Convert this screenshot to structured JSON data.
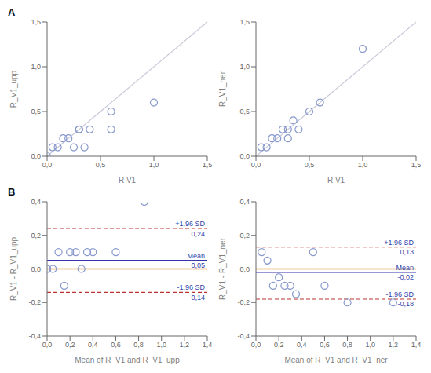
{
  "chart_data": [
    {
      "type": "scatter",
      "title": "A",
      "x": [
        0.0,
        0.05,
        0.1,
        0.15,
        0.2,
        0.25,
        0.3,
        0.3,
        0.35,
        0.4,
        0.6,
        0.6,
        1.0
      ],
      "values": [
        0.0,
        0.1,
        0.1,
        0.2,
        0.2,
        0.1,
        0.3,
        0.3,
        0.1,
        0.3,
        0.5,
        0.3,
        0.6
      ],
      "color": "#8899cc",
      "xlabel": "R V1",
      "ylabel": "R_V1_upp",
      "xlim": [
        0.0,
        1.5
      ],
      "ylim": [
        0.0,
        1.5
      ],
      "xticks": [
        {
          "value": 0.0,
          "label": "0,0"
        },
        {
          "value": 0.5,
          "label": "0,5"
        },
        {
          "value": 1.0,
          "label": "1,0"
        },
        {
          "value": 1.5,
          "label": "1,5"
        }
      ],
      "yticks": [
        {
          "value": 0.0,
          "label": "0,0"
        },
        {
          "value": 0.5,
          "label": "0,5"
        },
        {
          "value": 1.0,
          "label": "1,0"
        },
        {
          "value": 1.5,
          "label": "1,5"
        }
      ],
      "reference_line": {
        "x": [
          0,
          1.5
        ],
        "y": [
          0,
          1.5
        ],
        "color": "#c8c8d8"
      },
      "grid": false
    },
    {
      "type": "scatter",
      "x": [
        0.05,
        0.1,
        0.15,
        0.2,
        0.25,
        0.3,
        0.3,
        0.35,
        0.4,
        0.5,
        0.6,
        1.0
      ],
      "values": [
        0.1,
        0.1,
        0.2,
        0.2,
        0.3,
        0.3,
        0.2,
        0.4,
        0.3,
        0.5,
        0.6,
        1.2
      ],
      "color": "#8899cc",
      "xlabel": "R V1",
      "ylabel": "R_V1_ner",
      "xlim": [
        0.0,
        1.5
      ],
      "ylim": [
        0.0,
        1.5
      ],
      "xticks": [
        {
          "value": 0.0,
          "label": "0,0"
        },
        {
          "value": 0.5,
          "label": "0,5"
        },
        {
          "value": 1.0,
          "label": "1,0"
        },
        {
          "value": 1.5,
          "label": "1,5"
        }
      ],
      "yticks": [
        {
          "value": 0.0,
          "label": "0,0"
        },
        {
          "value": 0.5,
          "label": "0,5"
        },
        {
          "value": 1.0,
          "label": "1,0"
        },
        {
          "value": 1.5,
          "label": "1,5"
        }
      ],
      "reference_line": {
        "x": [
          0,
          1.5
        ],
        "y": [
          0,
          1.5
        ],
        "color": "#c8c8d8"
      },
      "grid": false
    },
    {
      "type": "scatter",
      "title": "B",
      "x": [
        0.0,
        0.0,
        0.05,
        0.1,
        0.15,
        0.2,
        0.25,
        0.3,
        0.35,
        0.4,
        0.6,
        0.85
      ],
      "values": [
        0.0,
        0.0,
        0.0,
        0.1,
        -0.1,
        0.1,
        0.1,
        0.0,
        0.1,
        0.1,
        0.1,
        0.4
      ],
      "color": "#8899cc",
      "xlabel": "Mean of R_V1 and R_V1_upp",
      "ylabel": "R_V1 - R_V1_upp",
      "xlim": [
        0.0,
        1.4
      ],
      "ylim": [
        -0.4,
        0.4
      ],
      "xticks": [
        {
          "value": 0.0,
          "label": "0,0"
        },
        {
          "value": 0.2,
          "label": "0,2"
        },
        {
          "value": 0.4,
          "label": "0,4"
        },
        {
          "value": 0.6,
          "label": "0,6"
        },
        {
          "value": 0.8,
          "label": "0,8"
        },
        {
          "value": 1.0,
          "label": "1,0"
        },
        {
          "value": 1.2,
          "label": "1,2"
        },
        {
          "value": 1.4,
          "label": "1,4"
        }
      ],
      "yticks": [
        {
          "value": -0.4,
          "label": "-0,4"
        },
        {
          "value": -0.2,
          "label": "-0,2"
        },
        {
          "value": 0.0,
          "label": "0,0"
        },
        {
          "value": 0.2,
          "label": "0,2"
        },
        {
          "value": 0.4,
          "label": "0,4"
        }
      ],
      "hlines": [
        {
          "value": 0,
          "color": "#dd9944",
          "line_style": "solid"
        },
        {
          "value": 0.05,
          "label": "0,05",
          "name": "Mean",
          "color": "#3333aa",
          "line_style": "solid"
        },
        {
          "value": 0.24,
          "label": "0,24",
          "name": "+1.96 SD",
          "color": "#bb3333",
          "line_style": "dashed"
        },
        {
          "value": -0.14,
          "label": "-0,14",
          "name": "-1.96 SD",
          "color": "#bb3333",
          "line_style": "dashed"
        }
      ],
      "grid": false
    },
    {
      "type": "scatter",
      "x": [
        0.05,
        0.1,
        0.15,
        0.2,
        0.25,
        0.3,
        0.35,
        0.5,
        0.6,
        0.8,
        1.2
      ],
      "values": [
        0.1,
        0.05,
        -0.1,
        -0.05,
        -0.1,
        -0.1,
        -0.15,
        0.1,
        -0.1,
        -0.2,
        -0.2
      ],
      "color": "#8899cc",
      "xlabel": "Mean of R_V1 and R_V1_ner",
      "ylabel": "R_V1 - R_V1_ner",
      "xlim": [
        0.0,
        1.4
      ],
      "ylim": [
        -0.4,
        0.4
      ],
      "xticks": [
        {
          "value": 0.0,
          "label": "0,0"
        },
        {
          "value": 0.2,
          "label": "0,2"
        },
        {
          "value": 0.4,
          "label": "0,4"
        },
        {
          "value": 0.6,
          "label": "0,6"
        },
        {
          "value": 0.8,
          "label": "0,8"
        },
        {
          "value": 1.0,
          "label": "1,0"
        },
        {
          "value": 1.2,
          "label": "1,2"
        },
        {
          "value": 1.4,
          "label": "1,4"
        }
      ],
      "yticks": [
        {
          "value": -0.4,
          "label": "-0,4"
        },
        {
          "value": -0.2,
          "label": "-0,2"
        },
        {
          "value": 0.0,
          "label": "0,0"
        },
        {
          "value": 0.2,
          "label": "0,2"
        },
        {
          "value": 0.4,
          "label": "0,4"
        }
      ],
      "hlines": [
        {
          "value": 0,
          "color": "#dd9944",
          "line_style": "solid"
        },
        {
          "value": -0.02,
          "label": "-0,02",
          "name": "Mean",
          "color": "#3333aa",
          "line_style": "solid"
        },
        {
          "value": 0.13,
          "label": "0,13",
          "name": "+1.96 SD",
          "color": "#bb3333",
          "line_style": "dashed"
        },
        {
          "value": -0.18,
          "label": "-0,18",
          "name": "-1.96 SD",
          "color": "#bb3333",
          "line_style": "dashed"
        }
      ],
      "grid": false
    }
  ]
}
